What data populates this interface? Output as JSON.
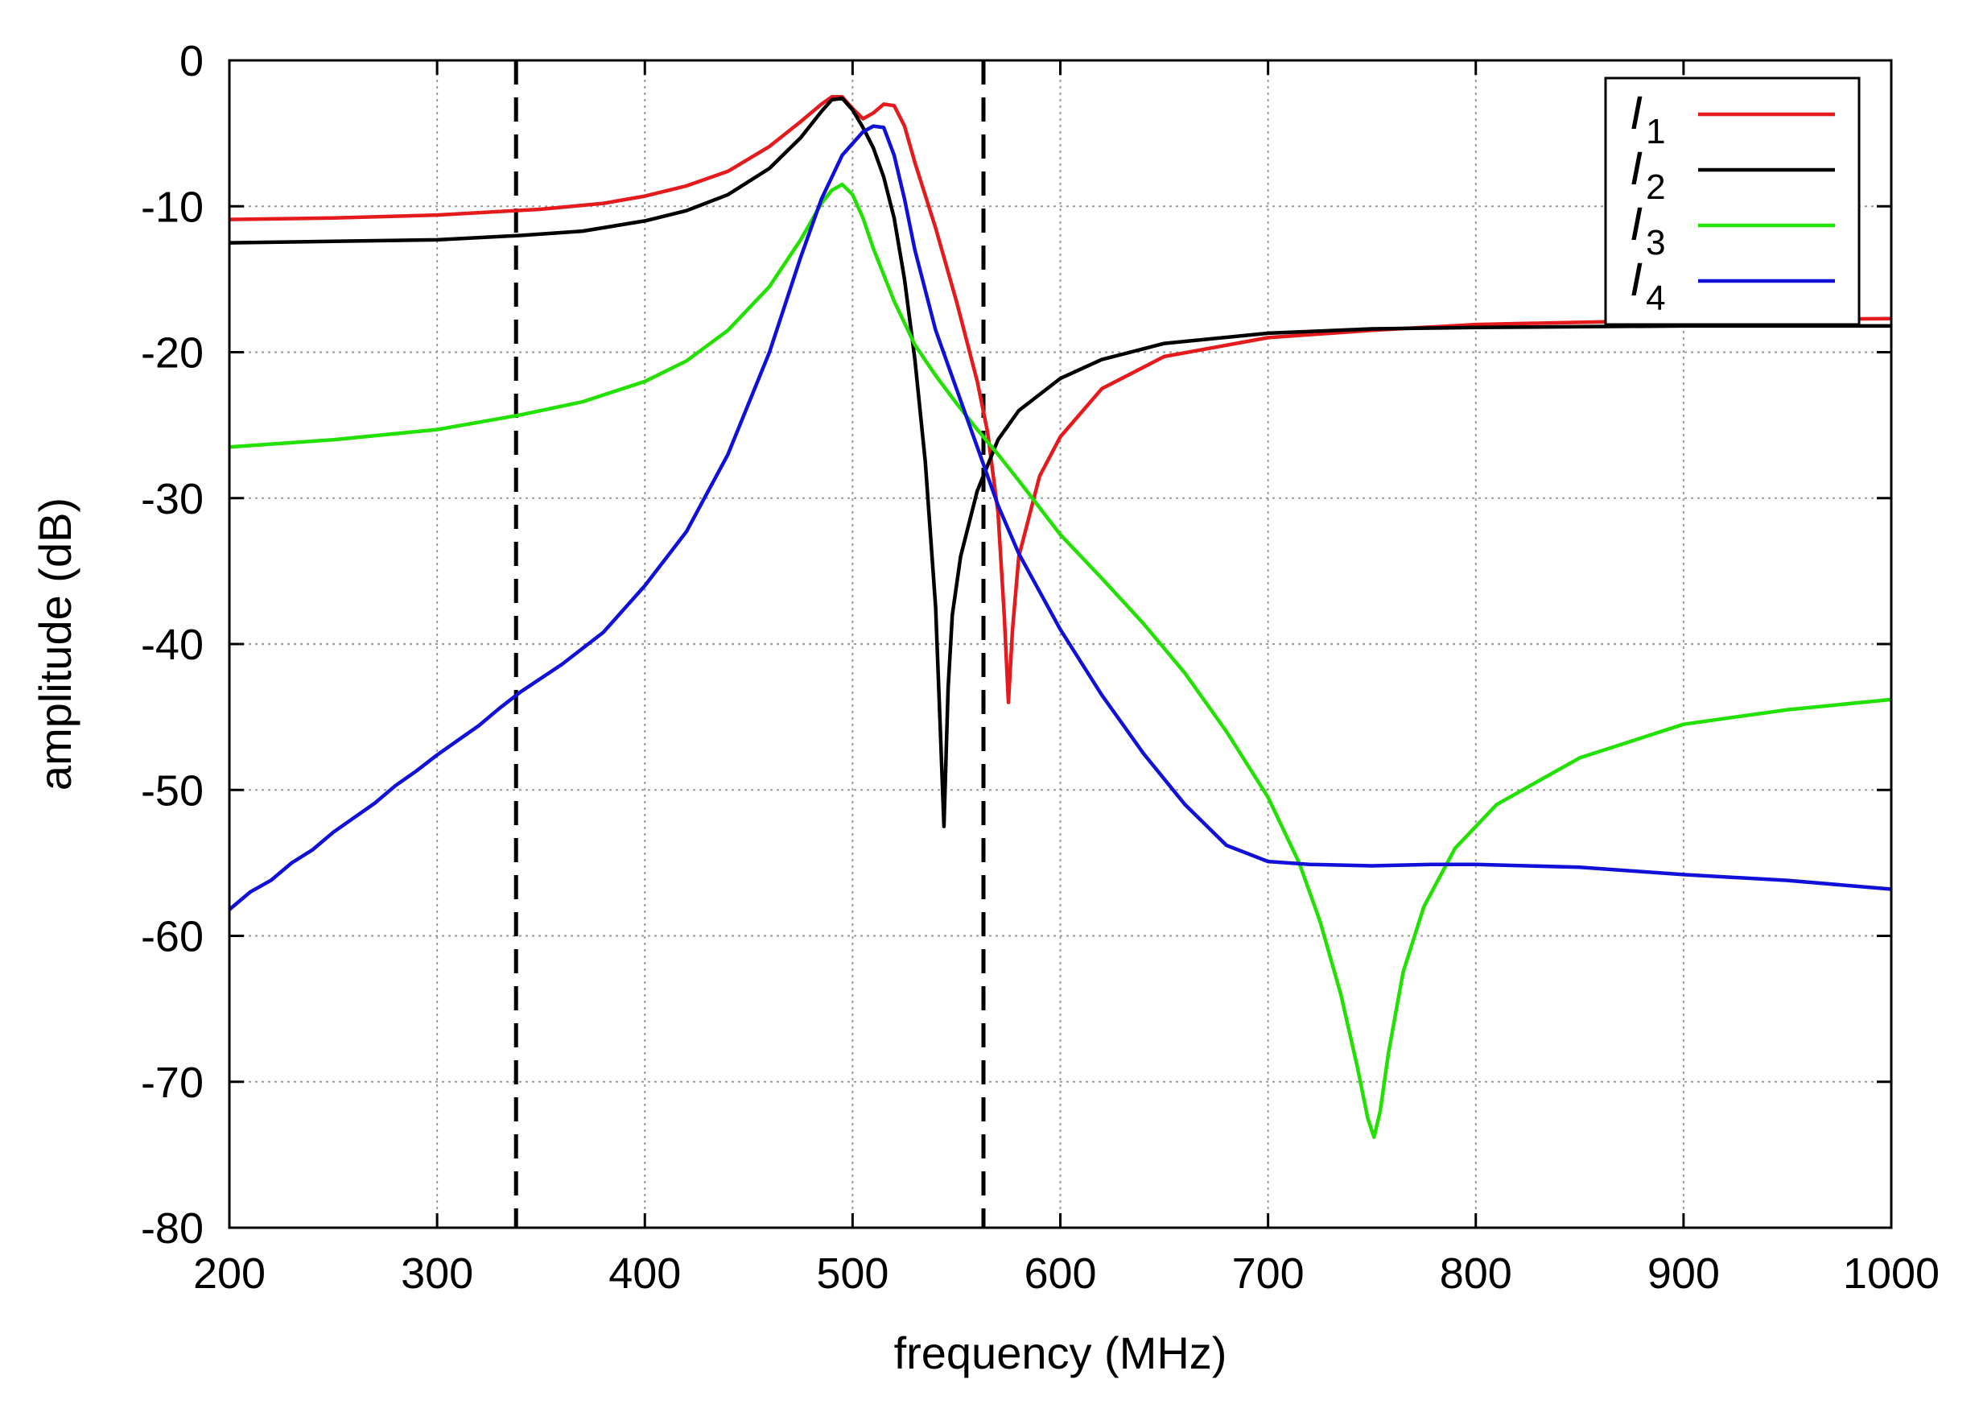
{
  "chart_data": {
    "type": "line",
    "title": "",
    "xlabel": "frequency  (MHz)",
    "ylabel": "amplitude (dB)",
    "xlim": [
      200,
      1000
    ],
    "ylim": [
      -80,
      0
    ],
    "xticks": [
      200,
      300,
      400,
      500,
      600,
      700,
      800,
      900,
      1000
    ],
    "yticks": [
      0,
      -10,
      -20,
      -30,
      -40,
      -50,
      -60,
      -70,
      -80
    ],
    "grid": true,
    "legend_position": "top-right",
    "vlines": [
      {
        "x": 338,
        "style": "dashed",
        "color": "#000000"
      },
      {
        "x": 563,
        "style": "dashed",
        "color": "#000000"
      }
    ],
    "series": [
      {
        "name": "I",
        "subscript": "1",
        "color": "#e41a1c",
        "points": [
          [
            200,
            -10.9
          ],
          [
            250,
            -10.8
          ],
          [
            300,
            -10.6
          ],
          [
            350,
            -10.2
          ],
          [
            380,
            -9.8
          ],
          [
            400,
            -9.3
          ],
          [
            420,
            -8.6
          ],
          [
            440,
            -7.6
          ],
          [
            460,
            -5.9
          ],
          [
            475,
            -4.2
          ],
          [
            485,
            -3.0
          ],
          [
            490,
            -2.5
          ],
          [
            495,
            -2.5
          ],
          [
            500,
            -3.3
          ],
          [
            505,
            -4.0
          ],
          [
            510,
            -3.6
          ],
          [
            515,
            -3.0
          ],
          [
            520,
            -3.1
          ],
          [
            525,
            -4.5
          ],
          [
            530,
            -7.0
          ],
          [
            540,
            -11.5
          ],
          [
            550,
            -16.5
          ],
          [
            560,
            -22.0
          ],
          [
            565,
            -25.5
          ],
          [
            570,
            -31.0
          ],
          [
            573,
            -38.0
          ],
          [
            575,
            -44.0
          ],
          [
            577,
            -39.0
          ],
          [
            580,
            -34.0
          ],
          [
            590,
            -28.5
          ],
          [
            600,
            -25.8
          ],
          [
            620,
            -22.5
          ],
          [
            650,
            -20.3
          ],
          [
            700,
            -19.0
          ],
          [
            750,
            -18.5
          ],
          [
            800,
            -18.1
          ],
          [
            900,
            -17.8
          ],
          [
            1000,
            -17.7
          ]
        ]
      },
      {
        "name": "I",
        "subscript": "2",
        "color": "#000000",
        "points": [
          [
            200,
            -12.5
          ],
          [
            250,
            -12.4
          ],
          [
            300,
            -12.3
          ],
          [
            340,
            -12.0
          ],
          [
            370,
            -11.7
          ],
          [
            400,
            -11.0
          ],
          [
            420,
            -10.3
          ],
          [
            440,
            -9.2
          ],
          [
            460,
            -7.4
          ],
          [
            475,
            -5.3
          ],
          [
            485,
            -3.5
          ],
          [
            490,
            -2.7
          ],
          [
            495,
            -2.6
          ],
          [
            500,
            -3.4
          ],
          [
            505,
            -4.6
          ],
          [
            510,
            -6.0
          ],
          [
            515,
            -8.0
          ],
          [
            520,
            -10.8
          ],
          [
            525,
            -15.0
          ],
          [
            530,
            -20.5
          ],
          [
            535,
            -27.5
          ],
          [
            540,
            -37.5
          ],
          [
            542,
            -45.0
          ],
          [
            544,
            -52.5
          ],
          [
            546,
            -43.0
          ],
          [
            548,
            -38.0
          ],
          [
            552,
            -34.0
          ],
          [
            560,
            -29.5
          ],
          [
            570,
            -26.0
          ],
          [
            580,
            -24.0
          ],
          [
            600,
            -21.8
          ],
          [
            620,
            -20.5
          ],
          [
            650,
            -19.4
          ],
          [
            700,
            -18.7
          ],
          [
            750,
            -18.4
          ],
          [
            800,
            -18.3
          ],
          [
            900,
            -18.2
          ],
          [
            1000,
            -18.2
          ]
        ]
      },
      {
        "name": "I",
        "subscript": "3",
        "color": "#22e000",
        "points": [
          [
            200,
            -26.5
          ],
          [
            250,
            -26.0
          ],
          [
            300,
            -25.3
          ],
          [
            340,
            -24.3
          ],
          [
            370,
            -23.4
          ],
          [
            400,
            -22.0
          ],
          [
            420,
            -20.6
          ],
          [
            440,
            -18.5
          ],
          [
            460,
            -15.5
          ],
          [
            475,
            -12.3
          ],
          [
            485,
            -9.8
          ],
          [
            490,
            -8.9
          ],
          [
            495,
            -8.5
          ],
          [
            500,
            -9.2
          ],
          [
            505,
            -10.8
          ],
          [
            510,
            -12.9
          ],
          [
            520,
            -16.5
          ],
          [
            530,
            -19.5
          ],
          [
            540,
            -21.6
          ],
          [
            550,
            -23.5
          ],
          [
            560,
            -25.3
          ],
          [
            570,
            -27.0
          ],
          [
            580,
            -28.8
          ],
          [
            600,
            -32.5
          ],
          [
            620,
            -35.5
          ],
          [
            640,
            -38.6
          ],
          [
            660,
            -42.0
          ],
          [
            680,
            -46.0
          ],
          [
            700,
            -50.5
          ],
          [
            715,
            -55.0
          ],
          [
            725,
            -59.0
          ],
          [
            735,
            -64.0
          ],
          [
            743,
            -69.0
          ],
          [
            748,
            -72.5
          ],
          [
            751,
            -73.8
          ],
          [
            754,
            -72.0
          ],
          [
            758,
            -68.0
          ],
          [
            765,
            -62.5
          ],
          [
            775,
            -58.0
          ],
          [
            790,
            -54.0
          ],
          [
            810,
            -51.0
          ],
          [
            850,
            -47.8
          ],
          [
            900,
            -45.5
          ],
          [
            950,
            -44.5
          ],
          [
            1000,
            -43.8
          ]
        ]
      },
      {
        "name": "I",
        "subscript": "4",
        "color": "#1010d8",
        "points": [
          [
            200,
            -58.2
          ],
          [
            210,
            -57.0
          ],
          [
            220,
            -56.2
          ],
          [
            230,
            -55.0
          ],
          [
            240,
            -54.1
          ],
          [
            250,
            -52.9
          ],
          [
            260,
            -51.9
          ],
          [
            270,
            -50.9
          ],
          [
            280,
            -49.7
          ],
          [
            290,
            -48.7
          ],
          [
            300,
            -47.6
          ],
          [
            310,
            -46.6
          ],
          [
            320,
            -45.6
          ],
          [
            330,
            -44.4
          ],
          [
            340,
            -43.3
          ],
          [
            360,
            -41.4
          ],
          [
            380,
            -39.2
          ],
          [
            400,
            -36.0
          ],
          [
            420,
            -32.3
          ],
          [
            440,
            -27.0
          ],
          [
            460,
            -20.0
          ],
          [
            475,
            -13.5
          ],
          [
            485,
            -9.5
          ],
          [
            495,
            -6.5
          ],
          [
            505,
            -4.9
          ],
          [
            510,
            -4.5
          ],
          [
            515,
            -4.6
          ],
          [
            520,
            -6.5
          ],
          [
            525,
            -9.5
          ],
          [
            530,
            -13.0
          ],
          [
            540,
            -18.5
          ],
          [
            550,
            -22.5
          ],
          [
            560,
            -26.5
          ],
          [
            570,
            -30.5
          ],
          [
            580,
            -33.8
          ],
          [
            600,
            -39.0
          ],
          [
            620,
            -43.5
          ],
          [
            640,
            -47.5
          ],
          [
            660,
            -51.0
          ],
          [
            680,
            -53.8
          ],
          [
            700,
            -54.9
          ],
          [
            720,
            -55.1
          ],
          [
            750,
            -55.2
          ],
          [
            780,
            -55.1
          ],
          [
            800,
            -55.1
          ],
          [
            850,
            -55.3
          ],
          [
            900,
            -55.8
          ],
          [
            950,
            -56.2
          ],
          [
            1000,
            -56.8
          ]
        ]
      }
    ]
  }
}
